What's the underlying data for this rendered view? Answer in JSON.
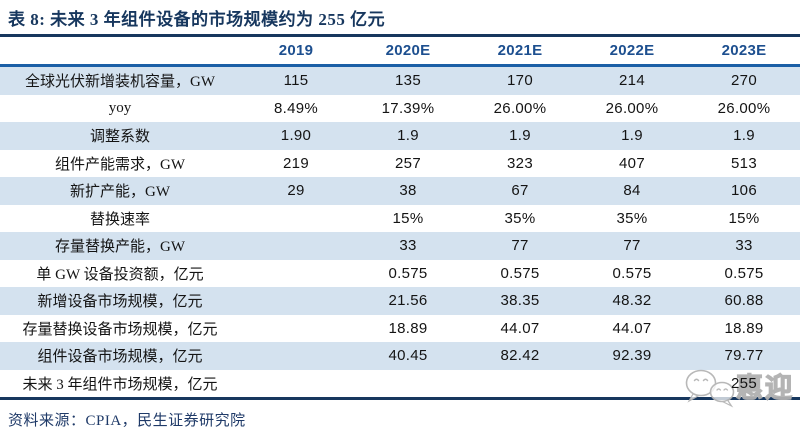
{
  "title": "表 8: 未来 3 年组件设备的市场规模约为 255 亿元",
  "table": {
    "columns": [
      "",
      "2019",
      "2020E",
      "2021E",
      "2022E",
      "2023E"
    ],
    "rows": [
      {
        "label": "全球光伏新增装机容量，GW",
        "values": [
          "115",
          "135",
          "170",
          "214",
          "270"
        ]
      },
      {
        "label": "yoy",
        "values": [
          "8.49%",
          "17.39%",
          "26.00%",
          "26.00%",
          "26.00%"
        ]
      },
      {
        "label": "调整系数",
        "values": [
          "1.90",
          "1.9",
          "1.9",
          "1.9",
          "1.9"
        ]
      },
      {
        "label": "组件产能需求，GW",
        "values": [
          "219",
          "257",
          "323",
          "407",
          "513"
        ]
      },
      {
        "label": "新扩产能，GW",
        "values": [
          "29",
          "38",
          "67",
          "84",
          "106"
        ]
      },
      {
        "label": "替换速率",
        "values": [
          "",
          "15%",
          "35%",
          "35%",
          "15%"
        ]
      },
      {
        "label": "存量替换产能，GW",
        "values": [
          "",
          "33",
          "77",
          "77",
          "33"
        ]
      },
      {
        "label": "单 GW 设备投资额，亿元",
        "values": [
          "",
          "0.575",
          "0.575",
          "0.575",
          "0.575"
        ]
      },
      {
        "label": "新增设备市场规模，亿元",
        "values": [
          "",
          "21.56",
          "38.35",
          "48.32",
          "60.88"
        ]
      },
      {
        "label": "存量替换设备市场规模，亿元",
        "values": [
          "",
          "18.89",
          "44.07",
          "44.07",
          "18.89"
        ]
      },
      {
        "label": "组件设备市场规模，亿元",
        "values": [
          "",
          "40.45",
          "82.42",
          "92.39",
          "79.77"
        ]
      },
      {
        "label": "未来 3 年组件市场规模，亿元",
        "values": [
          "",
          "",
          "",
          "",
          "255"
        ]
      }
    ]
  },
  "source": "资料来源：CPIA，民生证券研究院",
  "watermark": {
    "icon": "wechat-chat-bubbles-icon",
    "text": "惠迎"
  },
  "colors": {
    "title_navy": "#17375e",
    "header_year_blue": "#1d4f8f",
    "header_rule_blue": "#1b5fa6",
    "row_alt_blue": "#d4e2ef",
    "body_text": "#141414",
    "source_navy": "#1f3a68",
    "watermark_gray": "#b0b0b0"
  }
}
